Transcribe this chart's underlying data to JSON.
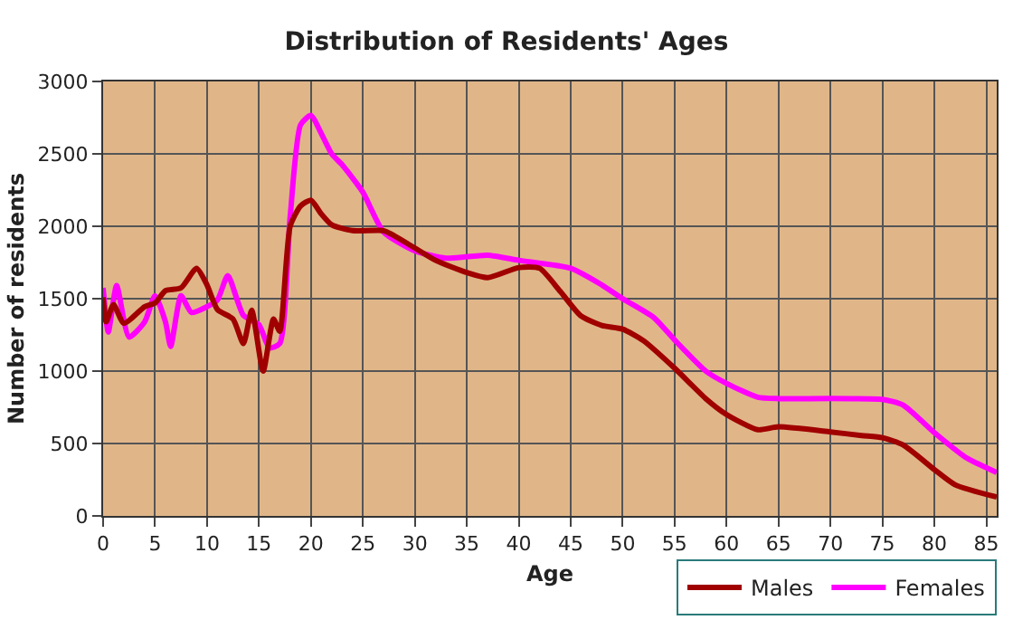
{
  "chart_data": {
    "type": "line",
    "title": "Distribution of Residents' Ages",
    "xlabel": "Age",
    "ylabel": "Number of residents",
    "xlim": [
      0,
      86
    ],
    "xticks": [
      0,
      5,
      10,
      15,
      20,
      25,
      30,
      35,
      40,
      45,
      50,
      55,
      60,
      65,
      70,
      75,
      80,
      85
    ],
    "ylim": [
      0,
      3000
    ],
    "yticks": [
      0,
      500,
      1000,
      1500,
      2000,
      2500,
      3000
    ],
    "grid": true,
    "legend": "bottom right",
    "marker": "none",
    "line_style": "solid",
    "series": [
      {
        "name": "Males",
        "color": "#a00000",
        "x": [
          0,
          0.3,
          1,
          2,
          4,
          5,
          6,
          7.5,
          9,
          10,
          11,
          12.5,
          13.5,
          14.3,
          15.4,
          16.4,
          17,
          18,
          19,
          20,
          21,
          22,
          24,
          27,
          28,
          30,
          32,
          35,
          37,
          40,
          42,
          44,
          46,
          48,
          50,
          52,
          55,
          58,
          60,
          63,
          65,
          70,
          73,
          75,
          77,
          80,
          82,
          86
        ],
        "values": [
          1510,
          1340,
          1460,
          1330,
          1445,
          1470,
          1555,
          1575,
          1710,
          1595,
          1425,
          1360,
          1190,
          1420,
          1000,
          1360,
          1275,
          2000,
          2140,
          2180,
          2085,
          2010,
          1970,
          1970,
          1935,
          1850,
          1765,
          1680,
          1645,
          1715,
          1710,
          1550,
          1380,
          1315,
          1290,
          1210,
          1020,
          810,
          700,
          595,
          615,
          580,
          555,
          540,
          490,
          320,
          215,
          130
        ]
      },
      {
        "name": "Females",
        "color": "#ff00ff",
        "x": [
          0,
          0.5,
          1.3,
          2.5,
          4,
          5,
          6,
          6.5,
          7.5,
          8.5,
          10,
          11,
          12,
          13.5,
          15,
          16,
          17,
          18,
          19,
          20,
          21,
          22,
          23,
          25,
          27,
          30,
          33,
          37,
          40,
          45,
          48,
          50,
          53,
          55,
          58,
          60,
          63,
          65,
          68,
          72,
          75,
          77,
          80,
          83,
          86
        ],
        "values": [
          1575,
          1270,
          1590,
          1235,
          1340,
          1520,
          1340,
          1170,
          1520,
          1405,
          1445,
          1490,
          1660,
          1385,
          1320,
          1160,
          1190,
          2065,
          2700,
          2765,
          2640,
          2500,
          2425,
          2235,
          1960,
          1830,
          1780,
          1800,
          1765,
          1710,
          1595,
          1500,
          1370,
          1215,
          1000,
          915,
          820,
          810,
          810,
          810,
          805,
          765,
          575,
          405,
          300
        ]
      }
    ]
  }
}
